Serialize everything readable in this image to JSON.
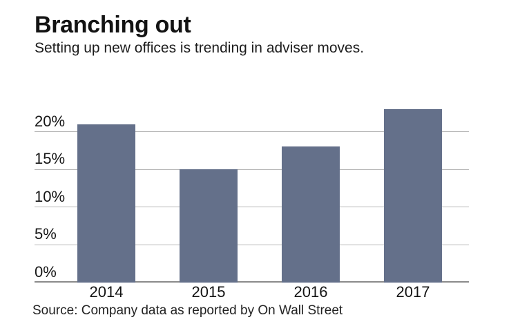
{
  "header": {
    "title": "Branching out",
    "subtitle": "Setting up new offices is trending in adviser moves."
  },
  "chart_data": {
    "type": "bar",
    "title": "Branching out",
    "subtitle": "Setting up new offices is trending in adviser moves.",
    "categories": [
      "2014",
      "2015",
      "2016",
      "2017"
    ],
    "values": [
      21,
      15,
      18,
      23
    ],
    "xlabel": "",
    "ylabel": "",
    "ylim": [
      0,
      25
    ],
    "yticks": [
      0,
      5,
      10,
      15,
      20
    ],
    "ytick_suffix": "%",
    "grid": true,
    "legend": "none",
    "bar_color": "#64708a",
    "gridline_color": "#b6b6b6",
    "baseline_color": "#8a8a8a"
  },
  "source": {
    "text": "Source: Company data as reported by On Wall Street"
  }
}
